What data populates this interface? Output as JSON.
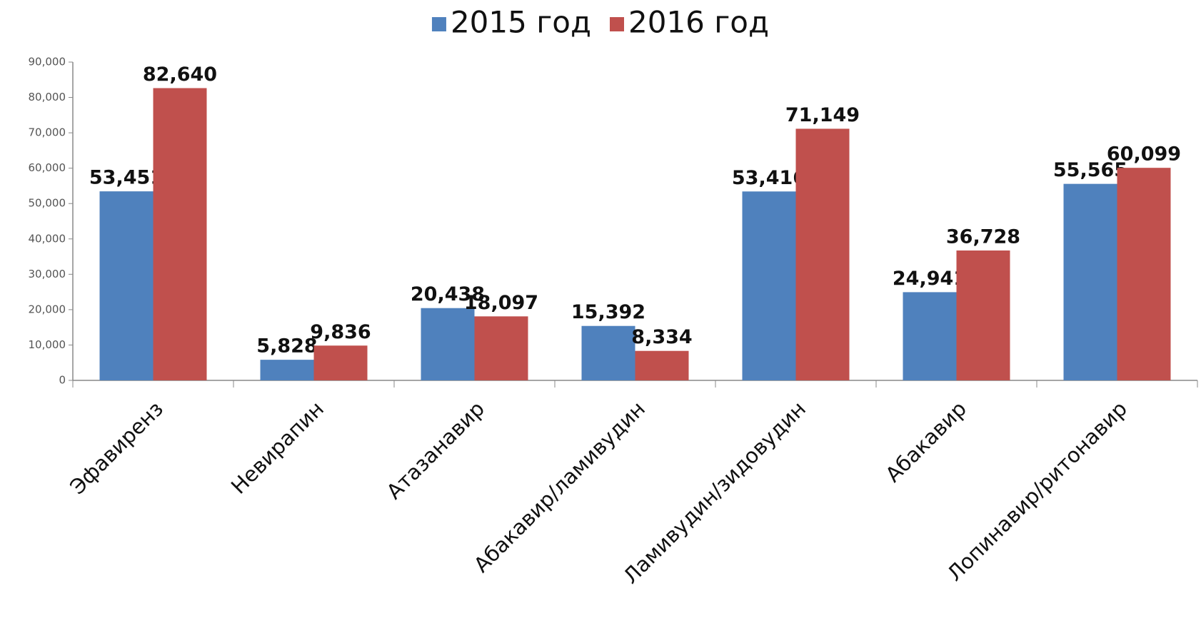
{
  "chart_data": {
    "type": "bar",
    "categories": [
      "Эфавиренз",
      "Невирапин",
      "Атазанавир",
      "Абакавир/ламивудин",
      "Ламивудин/зидовудин",
      "Абакавир",
      "Лопинавир/ритонавир"
    ],
    "series": [
      {
        "name": "2015 год",
        "color": "#4f81bd",
        "values": [
          53451,
          5828,
          20438,
          15392,
          53416,
          24941,
          55565
        ],
        "value_labels": [
          "53,451",
          "5,828",
          "20,438",
          "15,392",
          "53,416",
          "24,941",
          "55,565"
        ]
      },
      {
        "name": "2016 год",
        "color": "#c0504d",
        "values": [
          82640,
          9836,
          18097,
          8334,
          71149,
          36728,
          60099
        ],
        "value_labels": [
          "82,640",
          "9,836",
          "18,097",
          "8,334",
          "71,149",
          "36,728",
          "60,099"
        ]
      }
    ],
    "ylim": [
      0,
      90000
    ],
    "yticks": [
      0,
      {
        "value": 10000,
        "label": "10,000"
      },
      {
        "value": 20000,
        "label": "20,000"
      },
      {
        "value": 30000,
        "label": "30,000"
      },
      {
        "value": 40000,
        "label": "40,000"
      },
      {
        "value": 50000,
        "label": "50,000"
      },
      {
        "value": 60000,
        "label": "60,000"
      },
      {
        "value": 70000,
        "label": "70,000"
      },
      {
        "value": 80000,
        "label": "80,000"
      },
      {
        "value": 90000,
        "label": "90,000"
      }
    ],
    "legend": "top",
    "grid": false
  }
}
